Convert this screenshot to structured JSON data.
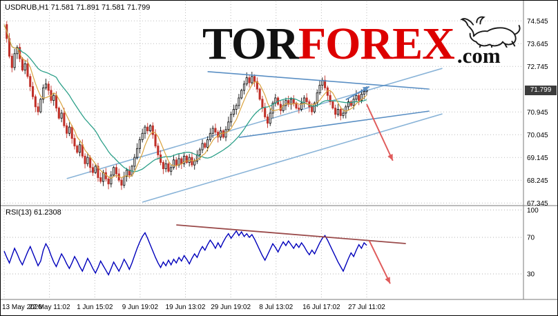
{
  "window": {
    "title": "USDRUB,H1 71.581 71.891 71.581 71.799",
    "symbol": "USDRUB",
    "timeframe": "H1",
    "ohlc": {
      "open": 71.581,
      "high": 71.891,
      "low": 71.581,
      "close": 71.799
    }
  },
  "logo": {
    "tor": "TOR",
    "forex": "FOREX",
    "com": ".com",
    "red": "#dd0000",
    "black": "#111111"
  },
  "price_badge": "71.799",
  "rsi_label": "RSI(13) 61.2308",
  "chart_data": [
    {
      "type": "candlestick",
      "title": "USDRUB H1",
      "x_labels": [
        "13 May 2020",
        "22 May 11:02",
        "1 Jun 15:02",
        "9 Jun 19:02",
        "19 Jun 13:02",
        "29 Jun 19:02",
        "8 Jul 13:02",
        "16 Jul 17:02",
        "27 Jul 11:02"
      ],
      "y_ticks": [
        74.545,
        73.645,
        72.745,
        71.845,
        70.945,
        70.045,
        69.145,
        68.245,
        67.345
      ],
      "ylim": [
        67.0,
        74.9
      ],
      "current_price": 71.799,
      "up_color": "#111111",
      "down_color": "#c03028",
      "ma_slow_color": "#2ca089",
      "ma_fast_color": "#d9a23d",
      "closes": [
        74.4,
        73.85,
        73.15,
        72.7,
        73.25,
        73.5,
        73.05,
        72.6,
        72.85,
        72.35,
        71.95,
        71.55,
        71.15,
        70.95,
        71.45,
        71.9,
        72.05,
        71.8,
        71.4,
        71.6,
        71.1,
        70.7,
        70.9,
        70.4,
        70.1,
        70.35,
        69.9,
        69.6,
        69.35,
        69.65,
        69.2,
        68.9,
        69.15,
        68.75,
        68.55,
        68.8,
        68.35,
        68.2,
        68.55,
        68.3,
        68.1,
        68.45,
        68.75,
        68.5,
        68.25,
        68.05,
        68.4,
        68.65,
        68.45,
        68.8,
        69.15,
        69.5,
        69.85,
        70.1,
        70.35,
        70.2,
        70.4,
        70.05,
        69.6,
        69.25,
        68.95,
        68.7,
        68.9,
        68.6,
        68.75,
        69.05,
        68.85,
        69.1,
        68.9,
        69.2,
        68.95,
        69.15,
        68.85,
        69.0,
        69.25,
        69.45,
        69.7,
        69.55,
        69.85,
        70.1,
        70.3,
        70.15,
        69.95,
        70.2,
        69.95,
        70.25,
        70.55,
        70.85,
        71.05,
        71.2,
        71.5,
        71.8,
        72.05,
        72.3,
        72.1,
        72.35,
        72.15,
        71.85,
        71.45,
        71.1,
        70.75,
        70.5,
        70.9,
        71.3,
        71.5,
        71.25,
        71.0,
        71.2,
        71.4,
        71.25,
        71.45,
        71.3,
        71.1,
        71.05,
        71.3,
        71.5,
        71.35,
        71.15,
        70.95,
        71.3,
        71.7,
        72.0,
        72.2,
        71.9,
        71.6,
        71.35,
        71.1,
        70.85,
        71.05,
        70.8,
        70.9,
        71.15,
        71.35,
        71.2,
        71.45,
        71.6,
        71.4,
        71.65,
        71.75,
        71.799
      ],
      "annotations": {
        "channel": {
          "color": "#8ab4d8",
          "lines": [
            [
              24,
              68.31,
              168,
              72.67
            ],
            [
              53,
              67.38,
              168,
              70.87
            ]
          ]
        },
        "wedge": {
          "color": "#5a8fc4",
          "lines": [
            [
              78,
              72.54,
              163,
              71.85
            ],
            [
              90,
              69.94,
              163,
              70.98
            ]
          ]
        },
        "red_arrow": {
          "color": "#e05b5b",
          "from": [
            139,
            71.25
          ],
          "to": [
            149,
            69.02
          ]
        },
        "blue_arrow": {
          "color": "#5a8fc4",
          "from": [
            131,
            71.43
          ],
          "to": [
            140,
            71.95
          ]
        }
      }
    },
    {
      "type": "line",
      "name": "RSI(13)",
      "current_value": 61.2308,
      "y_ticks": [
        100,
        70,
        30
      ],
      "line_color": "#0000bb",
      "values": [
        55,
        48,
        42,
        50,
        58,
        52,
        45,
        40,
        47,
        54,
        60,
        53,
        46,
        39,
        44,
        56,
        63,
        58,
        50,
        43,
        38,
        45,
        52,
        47,
        41,
        36,
        42,
        49,
        44,
        38,
        33,
        40,
        47,
        42,
        36,
        31,
        37,
        44,
        39,
        34,
        29,
        36,
        43,
        38,
        33,
        39,
        46,
        41,
        35,
        42,
        50,
        58,
        65,
        71,
        75,
        69,
        62,
        55,
        48,
        42,
        37,
        43,
        39,
        45,
        40,
        46,
        42,
        48,
        44,
        50,
        46,
        41,
        47,
        52,
        48,
        55,
        60,
        56,
        62,
        67,
        63,
        58,
        64,
        59,
        65,
        70,
        74,
        69,
        73,
        77,
        72,
        76,
        71,
        74,
        70,
        73,
        68,
        62,
        56,
        50,
        45,
        51,
        57,
        63,
        59,
        54,
        60,
        65,
        61,
        66,
        62,
        58,
        63,
        59,
        64,
        60,
        55,
        51,
        56,
        52,
        58,
        64,
        69,
        72,
        67,
        61,
        55,
        49,
        43,
        38,
        33,
        40,
        47,
        53,
        49,
        56,
        62,
        58,
        64,
        61.23
      ],
      "trend_line": {
        "color": "#9a4a4a",
        "from": [
          66,
          83.6
        ],
        "to": [
          154,
          63.2
        ]
      },
      "arrow": {
        "color": "#e05b5b",
        "from": [
          140,
          66.2
        ],
        "to": [
          148,
          19.4
        ]
      }
    }
  ]
}
